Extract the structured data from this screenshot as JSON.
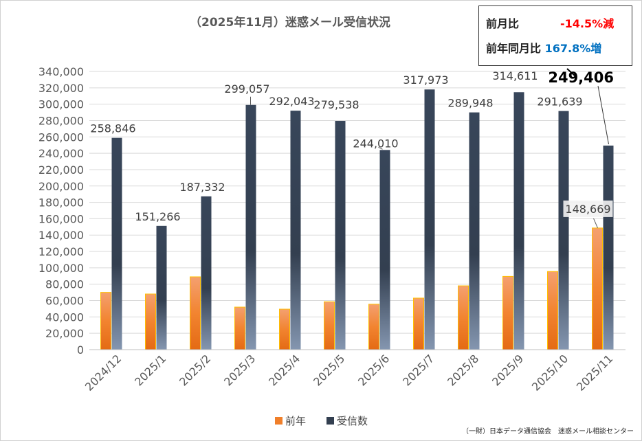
{
  "chart_data": {
    "type": "bar",
    "title": "（2025年11月）迷惑メール受信状況",
    "categories": [
      "2024/12",
      "2025/1",
      "2025/2",
      "2025/3",
      "2025/4",
      "2025/5",
      "2025/6",
      "2025/7",
      "2025/8",
      "2025/9",
      "2025/10",
      "2025/11"
    ],
    "series": [
      {
        "name": "前年",
        "color": "#F07F2A",
        "values": [
          70000,
          68000,
          89000,
          52000,
          49500,
          58500,
          55500,
          63000,
          78000,
          89500,
          95500,
          148669
        ],
        "labels": [
          "",
          "",
          "",
          "",
          "",
          "",
          "",
          "",
          "",
          "",
          "",
          "148,669"
        ]
      },
      {
        "name": "受信数",
        "color": "#333F50",
        "values": [
          258846,
          151266,
          187332,
          299057,
          292043,
          279538,
          244010,
          317973,
          289948,
          314611,
          291639,
          249406
        ],
        "labels": [
          "258,846",
          "151,266",
          "187,332",
          "299,057",
          "292,043",
          "279,538",
          "244,010",
          "317,973",
          "289,948",
          "314,611",
          "291,639",
          "249,406"
        ]
      }
    ],
    "ylim": [
      0,
      340000
    ],
    "yticks": [
      "0",
      "20,000",
      "40,000",
      "60,000",
      "80,000",
      "100,000",
      "120,000",
      "140,000",
      "160,000",
      "180,000",
      "200,000",
      "220,000",
      "240,000",
      "260,000",
      "280,000",
      "300,000",
      "320,000",
      "340,000"
    ],
    "grid": true,
    "legend": "bottom"
  },
  "stats": {
    "mom_label": "前月比",
    "mom_value": "-14.5%減",
    "mom_color": "#FF0000",
    "yoy_label": "前年同月比",
    "yoy_value": "167.8%増",
    "yoy_color": "#0070C0"
  },
  "footer": "（一財）日本データ通信協会　迷惑メール相談センター"
}
